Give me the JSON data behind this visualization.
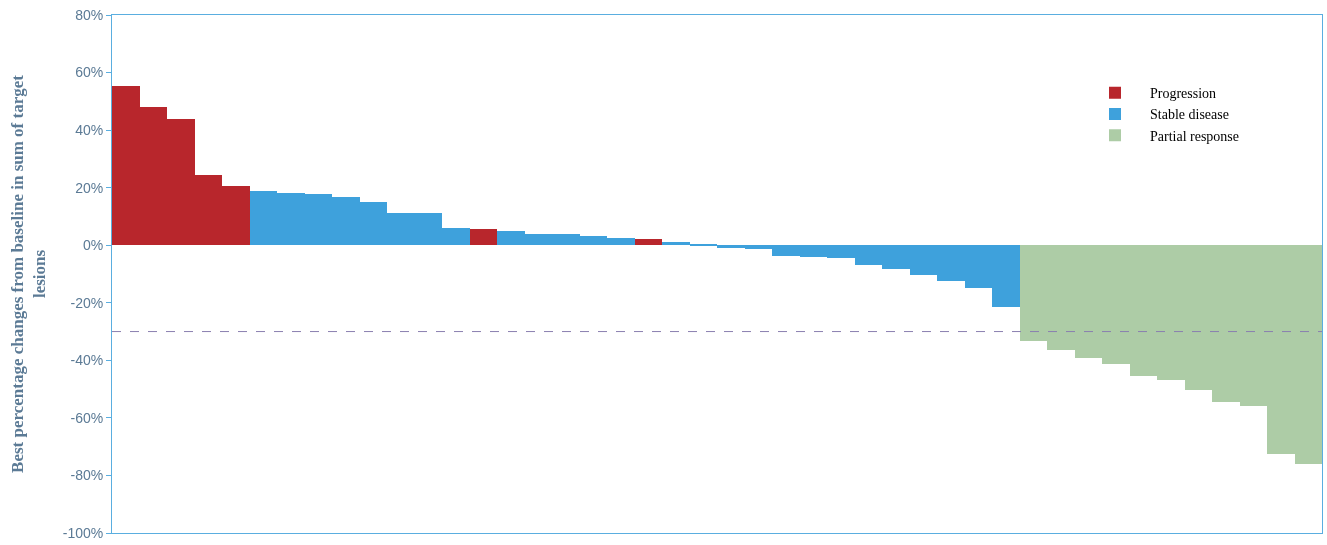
{
  "chart_data": {
    "type": "bar",
    "ylabel": "Best percentage changes from baseline in sum of target lesions",
    "categories": [
      null,
      null,
      null,
      null,
      null,
      null,
      null,
      null,
      null,
      null,
      null,
      null,
      null,
      null,
      null,
      null,
      null,
      null,
      null,
      null,
      null,
      null,
      null,
      null,
      null,
      null,
      null,
      null,
      null,
      null,
      null,
      null,
      null,
      null,
      null,
      null,
      null,
      null,
      null,
      null,
      null,
      null,
      null,
      null
    ],
    "series": [
      {
        "name": "Progression",
        "color": "#b8262c",
        "values": [
          55.5,
          48,
          44,
          24.5,
          20.5,
          null,
          null,
          null,
          null,
          null,
          null,
          null,
          null,
          5.7,
          null,
          null,
          null,
          null,
          null,
          2.1,
          null,
          null,
          null,
          null,
          null,
          null,
          null,
          null,
          null,
          null,
          null,
          null,
          null,
          null,
          null,
          null,
          null,
          null,
          null,
          null,
          null,
          null,
          null,
          null
        ]
      },
      {
        "name": "Stable disease",
        "color": "#3ea1dc",
        "values": [
          null,
          null,
          null,
          null,
          null,
          18.7,
          18.3,
          17.9,
          16.7,
          15,
          11.2,
          11.2,
          6,
          null,
          4.9,
          3.9,
          3.9,
          3.2,
          2.5,
          null,
          1.1,
          0.2,
          -1,
          -1.3,
          -3.7,
          -4.1,
          -4.4,
          -6.8,
          -8.1,
          -10.5,
          -12.6,
          -14.7,
          -21.6,
          null,
          null,
          null,
          null,
          null,
          null,
          null,
          null,
          null,
          null,
          null
        ]
      },
      {
        "name": "Partial response",
        "color": "#adcca6",
        "values": [
          null,
          null,
          null,
          null,
          null,
          null,
          null,
          null,
          null,
          null,
          null,
          null,
          null,
          null,
          null,
          null,
          null,
          null,
          null,
          null,
          null,
          null,
          null,
          null,
          null,
          null,
          null,
          null,
          null,
          null,
          null,
          null,
          null,
          -33.3,
          -36.5,
          -39.1,
          -41.2,
          -45.4,
          -46.8,
          -50.2,
          -54.4,
          -55.7,
          -72.6,
          -76
        ]
      }
    ],
    "ylim": [
      -100,
      80
    ],
    "yticks": [
      {
        "value": 80,
        "label": "80%"
      },
      {
        "value": 60,
        "label": "60%"
      },
      {
        "value": 40,
        "label": "40%"
      },
      {
        "value": 20,
        "label": "20%"
      },
      {
        "value": 0,
        "label": "0%"
      },
      {
        "value": -20,
        "label": "-20%"
      },
      {
        "value": -40,
        "label": "-40%"
      },
      {
        "value": -60,
        "label": "-60%"
      },
      {
        "value": -80,
        "label": "-80%"
      },
      {
        "value": -100,
        "label": "-100%"
      }
    ],
    "ref_lines": [
      {
        "axis": "y",
        "value": -30,
        "color": "#8a7fb0",
        "line_style": "dashed"
      }
    ],
    "legend": "top right",
    "tick_labels": "y"
  }
}
